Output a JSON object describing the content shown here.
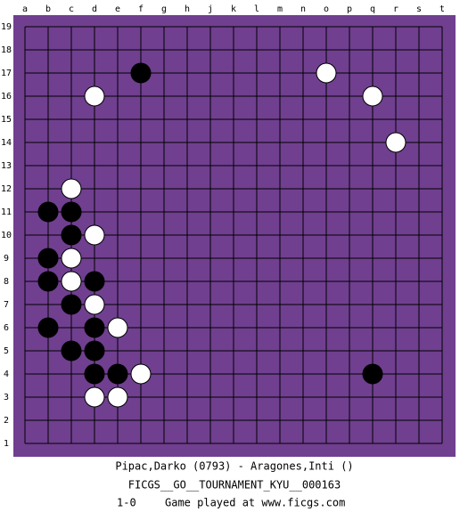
{
  "board": {
    "columns": [
      "a",
      "b",
      "c",
      "d",
      "e",
      "f",
      "g",
      "h",
      "j",
      "k",
      "l",
      "m",
      "n",
      "o",
      "p",
      "q",
      "r",
      "s",
      "t"
    ],
    "rows": [
      19,
      18,
      17,
      16,
      15,
      14,
      13,
      12,
      11,
      10,
      9,
      8,
      7,
      6,
      5,
      4,
      3,
      2,
      1
    ],
    "stones": [
      {
        "color": "black",
        "col": "f",
        "row": 17
      },
      {
        "color": "white",
        "col": "o",
        "row": 17
      },
      {
        "color": "white",
        "col": "d",
        "row": 16
      },
      {
        "color": "white",
        "col": "q",
        "row": 16
      },
      {
        "color": "white",
        "col": "r",
        "row": 14
      },
      {
        "color": "white",
        "col": "c",
        "row": 12
      },
      {
        "color": "black",
        "col": "b",
        "row": 11
      },
      {
        "color": "black",
        "col": "c",
        "row": 11
      },
      {
        "color": "black",
        "col": "c",
        "row": 10
      },
      {
        "color": "white",
        "col": "d",
        "row": 10
      },
      {
        "color": "black",
        "col": "b",
        "row": 9
      },
      {
        "color": "white",
        "col": "c",
        "row": 9
      },
      {
        "color": "black",
        "col": "b",
        "row": 8
      },
      {
        "color": "white",
        "col": "c",
        "row": 8
      },
      {
        "color": "black",
        "col": "d",
        "row": 8
      },
      {
        "color": "black",
        "col": "c",
        "row": 7
      },
      {
        "color": "white",
        "col": "d",
        "row": 7
      },
      {
        "color": "black",
        "col": "b",
        "row": 6
      },
      {
        "color": "black",
        "col": "d",
        "row": 6
      },
      {
        "color": "white",
        "col": "e",
        "row": 6
      },
      {
        "color": "black",
        "col": "c",
        "row": 5
      },
      {
        "color": "black",
        "col": "d",
        "row": 5
      },
      {
        "color": "black",
        "col": "d",
        "row": 4
      },
      {
        "color": "black",
        "col": "e",
        "row": 4
      },
      {
        "color": "white",
        "col": "f",
        "row": 4
      },
      {
        "color": "black",
        "col": "q",
        "row": 4
      },
      {
        "color": "white",
        "col": "d",
        "row": 3
      },
      {
        "color": "white",
        "col": "e",
        "row": 3
      }
    ]
  },
  "footer": {
    "players": "Pipac,Darko (0793) - Aragones,Inti ()",
    "event": "FICGS__GO__TOURNAMENT_KYU__000163",
    "result": "1-0",
    "site": "Game played at www.ficgs.com"
  }
}
